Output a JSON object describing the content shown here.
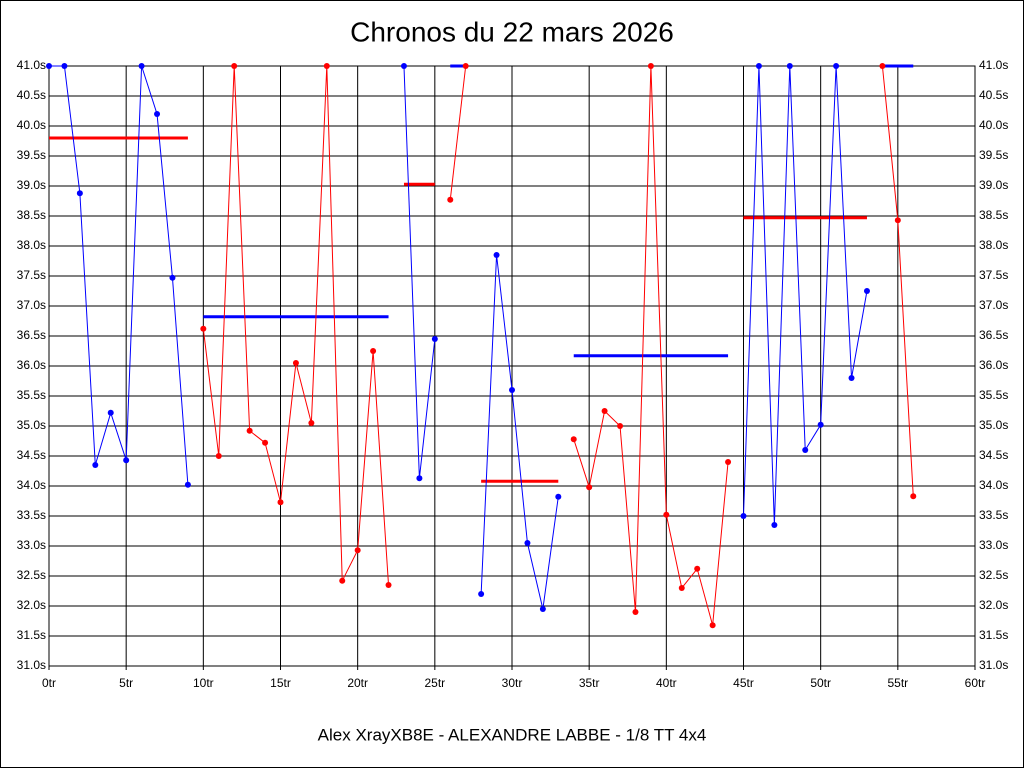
{
  "chart_data": {
    "type": "line",
    "title": "Chronos du 22 mars 2026",
    "footer": "Alex XrayXB8E - ALEXANDRE LABBE - 1/8 TT 4x4",
    "grid": true,
    "xlim": [
      0,
      60
    ],
    "xticks": [
      {
        "value": 0,
        "label": "0tr"
      },
      {
        "value": 5,
        "label": "5tr"
      },
      {
        "value": 10,
        "label": "10tr"
      },
      {
        "value": 15,
        "label": "15tr"
      },
      {
        "value": 20,
        "label": "20tr"
      },
      {
        "value": 25,
        "label": "25tr"
      },
      {
        "value": 30,
        "label": "30tr"
      },
      {
        "value": 35,
        "label": "35tr"
      },
      {
        "value": 40,
        "label": "40tr"
      },
      {
        "value": 45,
        "label": "45tr"
      },
      {
        "value": 50,
        "label": "50tr"
      },
      {
        "value": 55,
        "label": "55tr"
      },
      {
        "value": 60,
        "label": "60tr"
      }
    ],
    "ylim": [
      31,
      41
    ],
    "yticks": [
      {
        "value": 31,
        "label": "31.0s"
      },
      {
        "value": 31.5,
        "label": "31.5s"
      },
      {
        "value": 32,
        "label": "32.0s"
      },
      {
        "value": 32.5,
        "label": "32.5s"
      },
      {
        "value": 33,
        "label": "33.0s"
      },
      {
        "value": 33.5,
        "label": "33.5s"
      },
      {
        "value": 34,
        "label": "34.0s"
      },
      {
        "value": 34.5,
        "label": "34.5s"
      },
      {
        "value": 35,
        "label": "35.0s"
      },
      {
        "value": 35.5,
        "label": "35.5s"
      },
      {
        "value": 36,
        "label": "36.0s"
      },
      {
        "value": 36.5,
        "label": "36.5s"
      },
      {
        "value": 37,
        "label": "37.0s"
      },
      {
        "value": 37.5,
        "label": "37.5s"
      },
      {
        "value": 38,
        "label": "38.0s"
      },
      {
        "value": 38.5,
        "label": "38.5s"
      },
      {
        "value": 39,
        "label": "39.0s"
      },
      {
        "value": 39.5,
        "label": "39.5s"
      },
      {
        "value": 40,
        "label": "40.0s"
      },
      {
        "value": 40.5,
        "label": "40.5s"
      },
      {
        "value": 41,
        "label": "41.0s"
      }
    ],
    "series": [
      {
        "color": "#0000ff",
        "x": [
          0,
          1,
          2,
          3,
          4,
          5,
          6,
          7,
          8,
          9
        ],
        "values": [
          41.0,
          41.0,
          38.88,
          34.35,
          35.22,
          34.43,
          41.0,
          40.2,
          37.47,
          34.02
        ]
      },
      {
        "color": "#ff0000",
        "x": [
          10,
          11,
          12,
          13,
          14,
          15,
          16,
          17,
          18,
          19,
          20,
          21,
          22
        ],
        "values": [
          36.62,
          34.5,
          41.0,
          34.92,
          34.72,
          33.73,
          36.05,
          35.05,
          41.0,
          32.42,
          32.93,
          36.25,
          32.35
        ]
      },
      {
        "color": "#0000ff",
        "x": [
          23,
          24,
          25
        ],
        "values": [
          41.0,
          34.13,
          36.45
        ]
      },
      {
        "color": "#ff0000",
        "x": [
          26,
          27
        ],
        "values": [
          38.77,
          41.0
        ]
      },
      {
        "color": "#0000ff",
        "x": [
          28,
          29,
          30,
          31,
          32,
          33
        ],
        "values": [
          32.2,
          37.85,
          35.6,
          33.05,
          31.95,
          33.82
        ]
      },
      {
        "color": "#ff0000",
        "x": [
          34,
          35,
          36,
          37,
          38,
          39,
          40,
          41,
          42,
          43,
          44
        ],
        "values": [
          34.78,
          33.98,
          35.25,
          35.0,
          31.9,
          41.0,
          33.52,
          32.3,
          32.62,
          31.68,
          34.4
        ]
      },
      {
        "color": "#0000ff",
        "x": [
          45,
          46,
          47,
          48,
          49,
          50,
          51,
          52,
          53
        ],
        "values": [
          33.5,
          41.0,
          33.35,
          41.0,
          34.6,
          35.02,
          41.0,
          35.8,
          37.25
        ]
      },
      {
        "color": "#ff0000",
        "x": [
          54,
          55,
          56
        ],
        "values": [
          41.0,
          38.43,
          33.83
        ]
      }
    ],
    "averages": [
      {
        "color": "#ff0000",
        "x": [
          0,
          9
        ],
        "value": 39.8
      },
      {
        "color": "#0000ff",
        "x": [
          10,
          22
        ],
        "value": 36.82
      },
      {
        "color": "#ff0000",
        "x": [
          23,
          25
        ],
        "value": 39.03
      },
      {
        "color": "#0000ff",
        "x": [
          26,
          27
        ],
        "value": 41.0
      },
      {
        "color": "#ff0000",
        "x": [
          28,
          33
        ],
        "value": 34.08
      },
      {
        "color": "#0000ff",
        "x": [
          34,
          44
        ],
        "value": 36.17
      },
      {
        "color": "#ff0000",
        "x": [
          45,
          53
        ],
        "value": 38.47
      },
      {
        "color": "#0000ff",
        "x": [
          54,
          56
        ],
        "value": 41.0
      }
    ]
  }
}
